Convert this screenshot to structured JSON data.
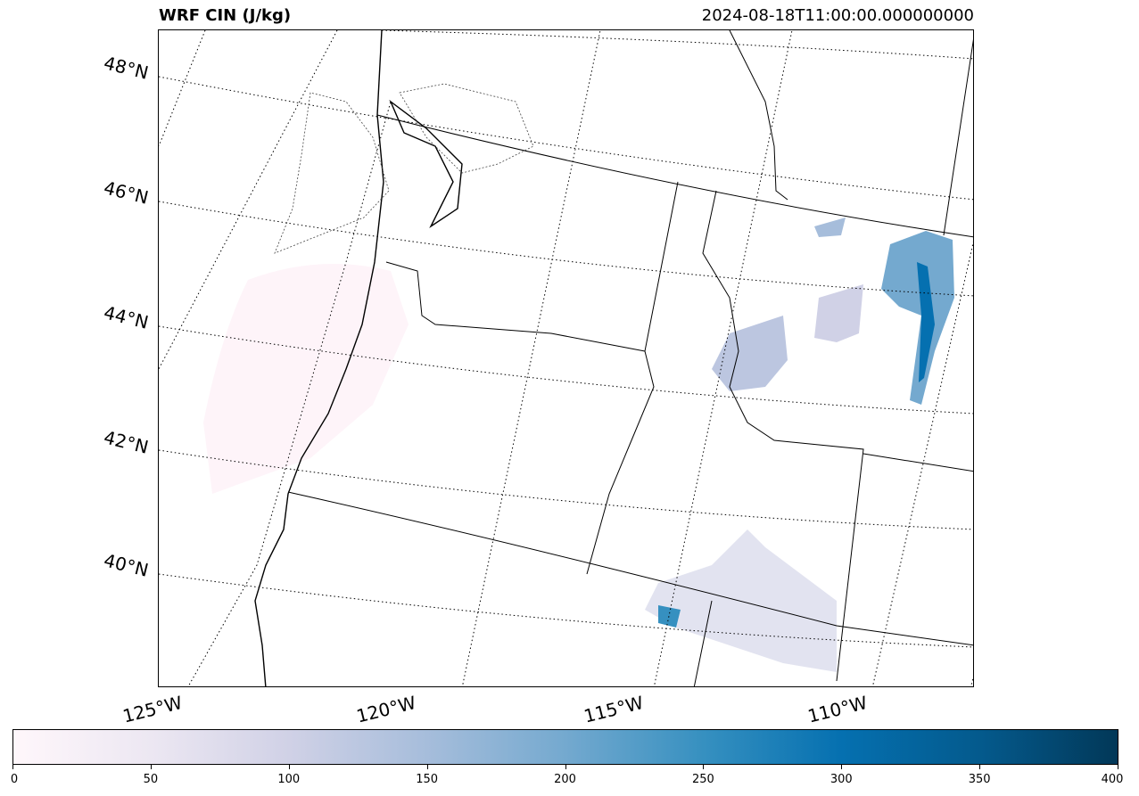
{
  "figure": {
    "title": "WRF CIN (J/kg)",
    "timestamp": "2024-08-18T11:00:00.000000000"
  },
  "map": {
    "lat_labels": [
      "48°N",
      "46°N",
      "44°N",
      "42°N",
      "40°N"
    ],
    "lon_labels": [
      "125°W",
      "120°W",
      "115°W",
      "110°W"
    ]
  },
  "colorbar": {
    "colormap": "PuBu",
    "min": 0,
    "max": 400,
    "ticks": [
      "0",
      "50",
      "100",
      "150",
      "200",
      "250",
      "300",
      "350",
      "400"
    ],
    "colors": [
      "#fff7fb",
      "#ece7f2",
      "#d0d1e6",
      "#a6bddb",
      "#74a9cf",
      "#3690c0",
      "#0570b0",
      "#045a8d",
      "#023858"
    ]
  }
}
